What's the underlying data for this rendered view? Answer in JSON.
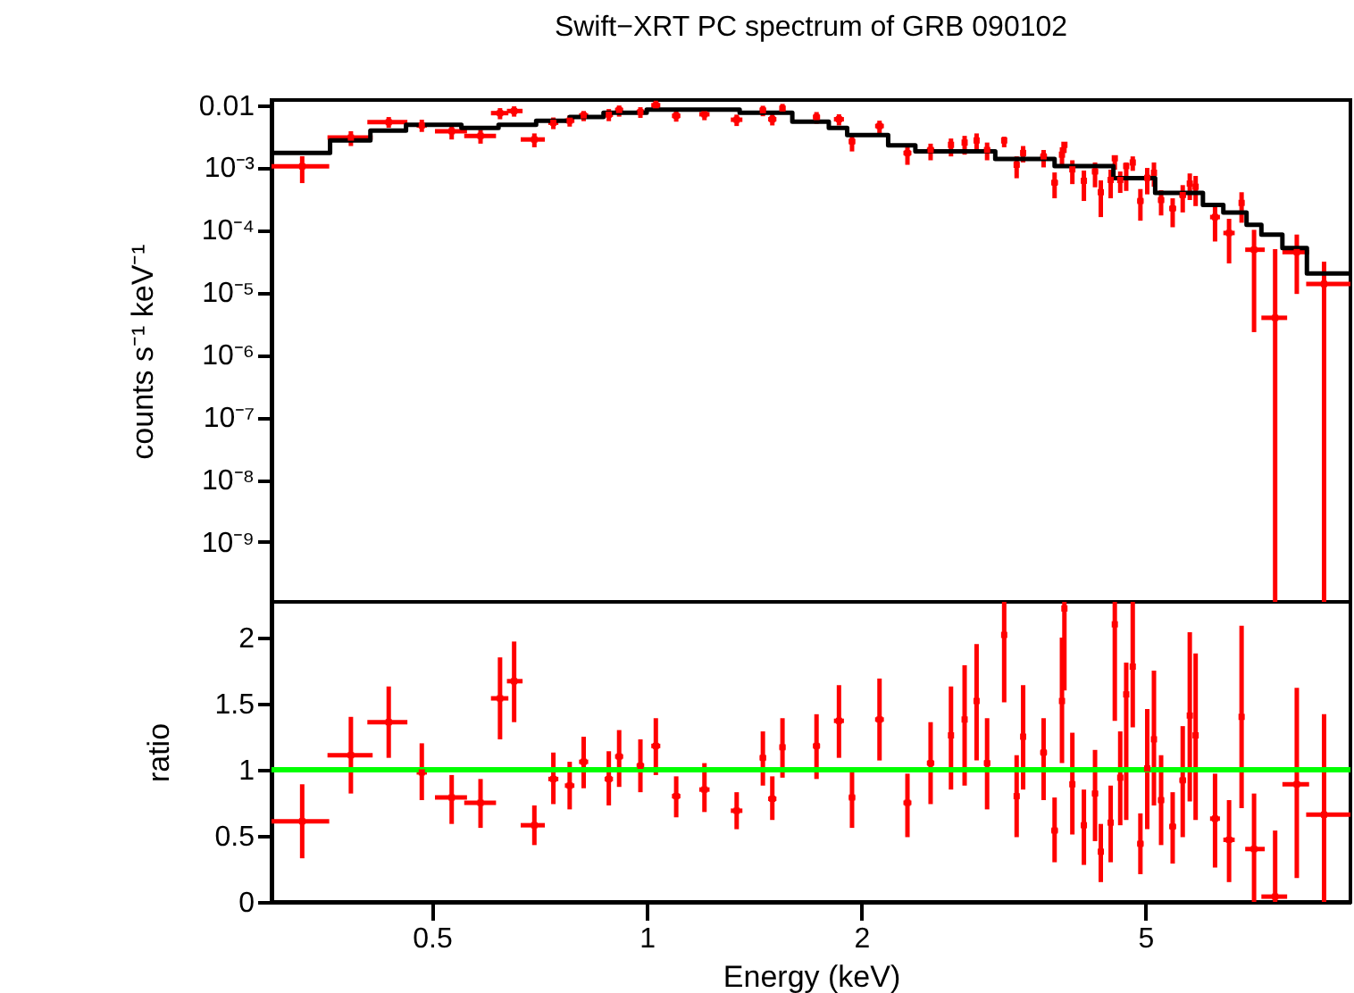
{
  "chart_data": [
    {
      "type": "scatter",
      "title": "Swift−XRT PC spectrum of GRB 090102",
      "ylabel": "counts s⁻¹ keV⁻¹",
      "log": "xy",
      "tick_labels": "y",
      "xlim": [
        0.298,
        9.69
      ],
      "xticks": [
        0.5,
        1,
        2,
        5
      ],
      "ylim": [
        1.1e-10,
        0.012
      ],
      "yticks": [
        {
          "value": 1e-09,
          "label": "10⁻⁹"
        },
        {
          "value": 1e-08,
          "label": "10⁻⁸"
        },
        {
          "value": 1e-07,
          "label": "10⁻⁷"
        },
        {
          "value": 1e-06,
          "label": "10⁻⁶"
        },
        {
          "value": 1e-05,
          "label": "10⁻⁵"
        },
        {
          "value": 0.0001,
          "label": "10⁻⁴"
        },
        {
          "value": 0.001,
          "label": "10⁻³"
        },
        0.01
      ],
      "series": [
        {
          "type": "scatter",
          "color": "#ff0000",
          "marker": "square",
          "x": [
            0.329,
            0.385,
            0.435,
            0.484,
            0.533,
            0.585,
            0.623,
            0.652,
            0.696,
            0.74,
            0.78,
            0.816,
            0.885,
            0.915,
            0.98,
            1.03,
            1.1,
            1.205,
            1.337,
            1.455,
            1.5,
            1.55,
            1.73,
            1.86,
            1.94,
            2.12,
            2.32,
            2.5,
            2.67,
            2.79,
            2.9,
            3.0,
            3.17,
            3.3,
            3.37,
            3.6,
            3.73,
            3.82,
            3.85,
            3.95,
            4.1,
            4.25,
            4.33,
            4.47,
            4.53,
            4.61,
            4.7,
            4.8,
            4.92,
            5.03,
            5.14,
            5.26,
            5.46,
            5.64,
            5.77,
            5.88,
            6.26,
            6.55,
            6.82,
            7.1,
            7.6,
            8.15,
            8.9
          ],
          "values": [
            0.00104,
            0.003,
            0.0053,
            0.0047,
            0.0038,
            0.0032,
            0.0074,
            0.008,
            0.0028,
            0.0052,
            0.0056,
            0.0068,
            0.007,
            0.0083,
            0.0077,
            0.0099,
            0.0067,
            0.0071,
            0.0058,
            0.0082,
            0.0059,
            0.0088,
            0.0064,
            0.0059,
            0.0026,
            0.0046,
            0.0017,
            0.0019,
            0.0023,
            0.0025,
            0.0027,
            0.0019,
            0.0027,
            0.0011,
            0.0017,
            0.0015,
            0.00057,
            0.0016,
            0.0023,
            0.00093,
            0.00061,
            0.00086,
            0.0004,
            0.00063,
            0.0014,
            0.00063,
            0.00105,
            0.0012,
            0.00029,
            0.00068,
            0.00082,
            0.0003,
            0.00022,
            0.00036,
            0.00055,
            0.00049,
            0.00016,
            8.9e-05,
            0.00027,
            4.8e-05,
            3.9e-06,
            4.4e-05,
            1.36e-05
          ],
          "errors": [
            [
              0.00056,
              0.00151
            ],
            [
              0.0022,
              0.0038
            ],
            [
              0.0043,
              0.0064
            ],
            [
              0.0037,
              0.0058
            ],
            [
              0.0028,
              0.0046
            ],
            [
              0.0024,
              0.004
            ],
            [
              0.0059,
              0.0089
            ],
            [
              0.0065,
              0.0095
            ],
            [
              0.0021,
              0.0035
            ],
            [
              0.0041,
              0.0063
            ],
            [
              0.0045,
              0.0068
            ],
            [
              0.0055,
              0.008
            ],
            [
              0.0055,
              0.0086
            ],
            [
              0.0065,
              0.0098
            ],
            [
              0.0062,
              0.0092
            ],
            [
              0.0081,
              0.0117
            ],
            [
              0.0054,
              0.008
            ],
            [
              0.0057,
              0.0088
            ],
            [
              0.0046,
              0.007
            ],
            [
              0.0066,
              0.0097
            ],
            [
              0.0047,
              0.0071
            ],
            [
              0.0071,
              0.0104
            ],
            [
              0.005,
              0.0077
            ],
            [
              0.0047,
              0.0071
            ],
            [
              0.0018,
              0.0032
            ],
            [
              0.0035,
              0.0056
            ],
            [
              0.0011,
              0.0022
            ],
            [
              0.0013,
              0.0024
            ],
            [
              0.0015,
              0.0029
            ],
            [
              0.0016,
              0.0032
            ],
            [
              0.0019,
              0.0035
            ],
            [
              0.0013,
              0.0025
            ],
            [
              0.0021,
              0.0031
            ],
            [
              0.00067,
              0.0015
            ],
            [
              0.0012,
              0.0022
            ],
            [
              0.001,
              0.0019
            ],
            [
              0.00032,
              0.00083
            ],
            [
              0.0011,
              0.0021
            ],
            [
              0.0017,
              0.0024
            ],
            [
              0.00054,
              0.0013
            ],
            [
              0.00029,
              0.00089
            ],
            [
              0.00048,
              0.0012
            ],
            [
              0.00016,
              0.00062
            ],
            [
              0.00032,
              0.00092
            ],
            [
              0.00092,
              0.0015
            ],
            [
              0.00039,
              0.00086
            ],
            [
              0.00042,
              0.0012
            ],
            [
              0.00088,
              0.0015
            ],
            [
              0.00014,
              0.00045
            ],
            [
              0.00037,
              0.00098
            ],
            [
              0.00049,
              0.0012
            ],
            [
              0.00017,
              0.00043
            ],
            [
              0.00011,
              0.00032
            ],
            [
              0.00019,
              0.00052
            ],
            [
              0.0003,
              0.0008
            ],
            [
              0.00024,
              0.00073
            ],
            [
              6.5e-05,
              0.00024
            ],
            [
              2.9e-05,
              0.00015
            ],
            [
              0.00013,
              0.0004
            ],
            [
              2.3e-06,
              0.0001
            ],
            [
              1.1e-10,
              4.9e-05
            ],
            [
              9.4e-06,
              8.4e-05
            ],
            [
              1.1e-10,
              3.1e-05
            ]
          ],
          "xerrors": [
            [
              0.298,
              0.359
            ],
            [
              0.357,
              0.413
            ],
            [
              0.406,
              0.462
            ],
            0.008,
            [
              0.505,
              0.56
            ],
            [
              0.555,
              0.615
            ],
            [
              0.605,
              0.64
            ],
            [
              0.637,
              0.67
            ],
            [
              0.666,
              0.72
            ],
            0.012,
            0.012,
            0.012,
            0.012,
            0.012,
            0.012,
            0.015,
            0.015,
            0.02,
            0.025,
            0.015,
            0.02,
            0.015,
            0.02,
            0.03,
            0.02,
            0.03,
            0.03,
            0.03,
            0.02,
            0.02,
            0.02,
            0.03,
            0.02,
            0.03,
            0.02,
            0.04,
            0.04,
            0.02,
            0.02,
            0.03,
            0.04,
            0.04,
            0.04,
            0.04,
            0.03,
            0.04,
            0.04,
            0.04,
            0.05,
            0.04,
            0.04,
            0.05,
            0.06,
            0.06,
            0.05,
            0.05,
            0.1,
            0.12,
            0.06,
            [
              6.9,
              7.35
            ],
            [
              7.27,
              7.9
            ],
            [
              7.78,
              8.48
            ],
            [
              8.4,
              9.69
            ]
          ]
        },
        {
          "type": "step",
          "color": "#000000",
          "x": [
            0.3,
            0.36,
            0.41,
            0.46,
            0.55,
            0.62,
            0.7,
            0.78,
            0.87,
            1.0,
            1.35,
            1.6,
            1.8,
            1.91,
            2.18,
            2.38,
            3.08,
            3.73,
            4.51,
            5.16,
            6.02,
            6.43,
            6.93,
            7.27,
            7.78,
            8.42,
            9.69
          ],
          "values": [
            0.0017,
            0.0027,
            0.0039,
            0.0048,
            0.0043,
            0.0048,
            0.0056,
            0.0064,
            0.0075,
            0.0084,
            0.0075,
            0.0054,
            0.0043,
            0.0033,
            0.00225,
            0.0018,
            0.00136,
            0.00105,
            0.00067,
            0.00039,
            0.00025,
            0.00019,
            0.00012,
            8.4e-05,
            5.1e-05,
            2e-05,
            2e-05
          ]
        }
      ]
    },
    {
      "type": "scatter",
      "xlabel": "Energy (keV)",
      "ylabel": "ratio",
      "log": "x",
      "xlim": [
        0.298,
        9.69
      ],
      "xticks": [
        0.5,
        1,
        2,
        5
      ],
      "ylim": [
        0,
        2.27
      ],
      "yticks": [
        0,
        0.5,
        1,
        1.5,
        2
      ],
      "ref_lines": [
        {
          "axis": "y",
          "value": 1,
          "color": "#00ff00"
        }
      ],
      "series": [
        {
          "type": "scatter",
          "color": "#ff0000",
          "marker": "square",
          "x": [
            0.329,
            0.385,
            0.435,
            0.484,
            0.533,
            0.585,
            0.623,
            0.652,
            0.696,
            0.74,
            0.78,
            0.816,
            0.885,
            0.915,
            0.98,
            1.03,
            1.1,
            1.205,
            1.337,
            1.455,
            1.5,
            1.55,
            1.73,
            1.86,
            1.94,
            2.12,
            2.32,
            2.5,
            2.67,
            2.79,
            2.9,
            3.0,
            3.17,
            3.3,
            3.37,
            3.6,
            3.73,
            3.82,
            3.85,
            3.95,
            4.1,
            4.25,
            4.33,
            4.47,
            4.53,
            4.61,
            4.7,
            4.8,
            4.92,
            5.03,
            5.14,
            5.26,
            5.46,
            5.64,
            5.77,
            5.88,
            6.26,
            6.55,
            6.82,
            7.1,
            7.6,
            8.15,
            8.9
          ],
          "values": [
            0.61,
            1.11,
            1.36,
            0.98,
            0.79,
            0.75,
            1.54,
            1.67,
            0.58,
            0.93,
            0.88,
            1.06,
            0.93,
            1.1,
            1.03,
            1.18,
            0.8,
            0.85,
            0.69,
            1.09,
            0.78,
            1.17,
            1.18,
            1.37,
            0.79,
            1.38,
            0.75,
            1.05,
            1.26,
            1.38,
            1.52,
            1.05,
            2.02,
            0.8,
            1.25,
            1.13,
            0.54,
            1.52,
            2.22,
            0.89,
            0.58,
            0.82,
            0.38,
            0.6,
            2.1,
            0.94,
            1.57,
            1.78,
            0.44,
            1.01,
            1.23,
            0.77,
            0.57,
            0.92,
            1.41,
            1.26,
            0.63,
            0.47,
            1.4,
            0.4,
            0.04,
            0.89,
            0.66
          ],
          "errors": [
            [
              0.33,
              0.89
            ],
            [
              0.82,
              1.4
            ],
            [
              1.09,
              1.63
            ],
            [
              0.77,
              1.2
            ],
            [
              0.59,
              0.96
            ],
            [
              0.56,
              0.93
            ],
            [
              1.23,
              1.85
            ],
            [
              1.36,
              1.97
            ],
            [
              0.43,
              0.73
            ],
            [
              0.74,
              1.13
            ],
            [
              0.7,
              1.06
            ],
            [
              0.86,
              1.25
            ],
            [
              0.73,
              1.14
            ],
            [
              0.87,
              1.3
            ],
            [
              0.83,
              1.23
            ],
            [
              0.96,
              1.39
            ],
            [
              0.64,
              0.95
            ],
            [
              0.68,
              1.05
            ],
            [
              0.55,
              0.83
            ],
            [
              0.88,
              1.29
            ],
            [
              0.62,
              0.95
            ],
            [
              0.94,
              1.39
            ],
            [
              0.93,
              1.42
            ],
            [
              1.09,
              1.64
            ],
            [
              0.56,
              0.98
            ],
            [
              1.07,
              1.69
            ],
            [
              0.49,
              0.97
            ],
            [
              0.74,
              1.36
            ],
            [
              0.85,
              1.63
            ],
            [
              0.88,
              1.79
            ],
            [
              1.07,
              1.95
            ],
            [
              0.7,
              1.39
            ],
            [
              1.51,
              2.27
            ],
            [
              0.49,
              1.11
            ],
            [
              0.85,
              1.64
            ],
            [
              0.77,
              1.39
            ],
            [
              0.3,
              0.79
            ],
            [
              1.05,
              2.0
            ],
            [
              1.6,
              2.27
            ],
            [
              0.51,
              1.28
            ],
            [
              0.28,
              0.85
            ],
            [
              0.46,
              1.15
            ],
            [
              0.15,
              0.59
            ],
            [
              0.3,
              0.88
            ],
            [
              1.37,
              2.27
            ],
            [
              0.58,
              1.29
            ],
            [
              0.62,
              1.81
            ],
            [
              1.32,
              2.27
            ],
            [
              0.21,
              0.67
            ],
            [
              0.55,
              1.46
            ],
            [
              0.73,
              1.75
            ],
            [
              0.43,
              1.11
            ],
            [
              0.29,
              0.83
            ],
            [
              0.49,
              1.33
            ],
            [
              0.76,
              2.04
            ],
            [
              0.62,
              1.88
            ],
            [
              0.26,
              0.97
            ],
            [
              0.15,
              0.77
            ],
            [
              0.71,
              2.09
            ],
            [
              0,
              0.82
            ],
            [
              0,
              0.54
            ],
            [
              0.18,
              1.62
            ],
            [
              0,
              1.42
            ]
          ],
          "xerrors": [
            [
              0.298,
              0.359
            ],
            [
              0.357,
              0.413
            ],
            [
              0.406,
              0.462
            ],
            0.008,
            [
              0.505,
              0.56
            ],
            [
              0.555,
              0.615
            ],
            [
              0.605,
              0.64
            ],
            [
              0.637,
              0.67
            ],
            [
              0.666,
              0.72
            ],
            0.012,
            0.012,
            0.012,
            0.012,
            0.012,
            0.012,
            0.015,
            0.015,
            0.02,
            0.025,
            0.015,
            0.02,
            0.015,
            0.02,
            0.03,
            0.02,
            0.03,
            0.03,
            0.03,
            0.02,
            0.02,
            0.02,
            0.03,
            0.02,
            0.03,
            0.02,
            0.04,
            0.04,
            0.02,
            0.02,
            0.03,
            0.04,
            0.04,
            0.04,
            0.04,
            0.03,
            0.04,
            0.04,
            0.04,
            0.05,
            0.04,
            0.04,
            0.05,
            0.06,
            0.06,
            0.05,
            0.05,
            0.1,
            0.12,
            0.06,
            [
              6.9,
              7.35
            ],
            [
              7.27,
              7.9
            ],
            [
              7.78,
              8.48
            ],
            [
              8.4,
              9.69
            ]
          ]
        }
      ]
    }
  ]
}
